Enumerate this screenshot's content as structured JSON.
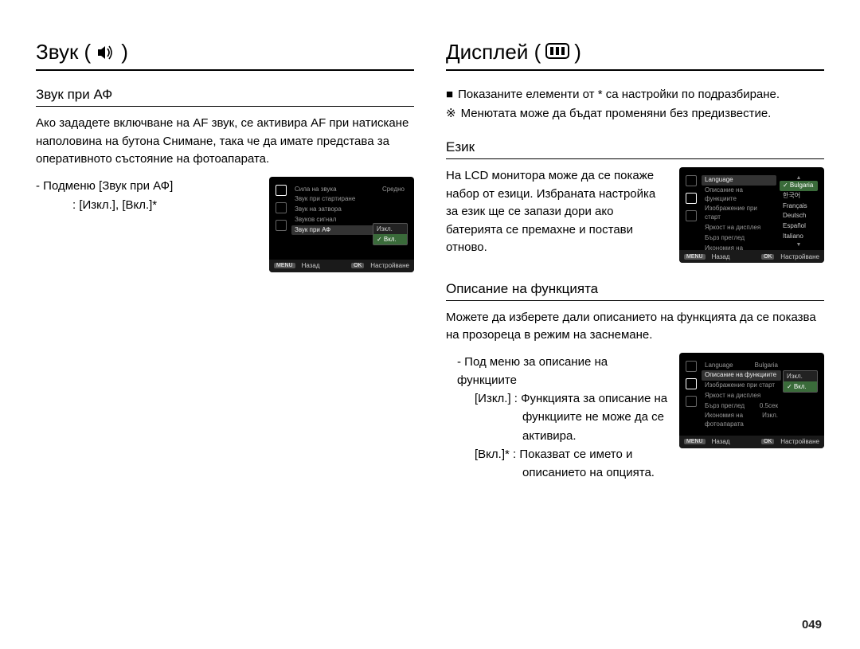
{
  "left": {
    "title": "Звук (",
    "title_close": ")",
    "icon": "sound-icon",
    "section1": {
      "heading": "Звук при АФ",
      "para": "Ако зададете включване на AF звук, се активира AF при натискане наполовина на бутона Снимане, така че да имате представа за оперативното състояние на фотоапарата.",
      "submenu_label": "- Подменю [Звук при АФ]",
      "submenu_values": ": [Изкл.], [Вкл.]*"
    },
    "lcd1": {
      "rows": [
        {
          "l": "Сила на звука",
          "r": "Средно"
        },
        {
          "l": "Звук при стартиране",
          "r": ""
        },
        {
          "l": "Звук на затвора",
          "r": ""
        },
        {
          "l": "Звуков сигнал",
          "r": ""
        },
        {
          "l": "Звук при АФ",
          "r": "",
          "sel": true
        }
      ],
      "opts": [
        {
          "t": "Изкл."
        },
        {
          "t": "Вкл.",
          "sel": true,
          "chk": true
        }
      ],
      "footer": {
        "back_btn": "MENU",
        "back": "Назад",
        "set_btn": "OK",
        "set": "Настройване"
      }
    }
  },
  "right": {
    "title": "Дисплей (",
    "title_close": ")",
    "icon": "display-icon",
    "notes": [
      {
        "b": "■",
        "t": "Показаните елементи от * са настройки по подразбиране."
      },
      {
        "b": "※",
        "t": "Менютата може да бъдат променяни без предизвестие."
      }
    ],
    "lang": {
      "heading": "Език",
      "para": "На LCD монитора може да се покаже набор от езици. Избраната настройка за език ще се запази дори ако батерията се премахне и постави отново."
    },
    "lcd2": {
      "rows": [
        {
          "l": "Language",
          "sel": true
        },
        {
          "l": "Описание на функциите"
        },
        {
          "l": "Изображение при старт"
        },
        {
          "l": "Яркост на дисплея"
        },
        {
          "l": "Бърз преглед"
        },
        {
          "l": "Икономия на фотоапарата"
        }
      ],
      "opts": [
        {
          "t": "Bulgaria",
          "sel": true,
          "chk": true
        },
        {
          "t": "한국어"
        },
        {
          "t": "Français"
        },
        {
          "t": "Deutsch"
        },
        {
          "t": "Español"
        },
        {
          "t": "Italiano"
        }
      ],
      "footer": {
        "back_btn": "MENU",
        "back": "Назад",
        "set_btn": "OK",
        "set": "Настройване"
      }
    },
    "funcdesc": {
      "heading": "Описание на функцията",
      "para": "Можете да изберете дали описанието на функцията да се показва на прозореца в режим на заснемане.",
      "sub_label": "- Под меню за описание на функциите",
      "opt1_label": "[Изкл.] :",
      "opt1_text1": "Функцията за описание на",
      "opt1_text2": "функциите не може да се",
      "opt1_text3": "активира.",
      "opt2_label": "[Вкл.]* :",
      "opt2_text1": "Показват се името и",
      "opt2_text2": "описанието на опцията."
    },
    "lcd3": {
      "rows": [
        {
          "l": "Language",
          "r": "Bulgaria"
        },
        {
          "l": "Описание на функциите",
          "sel": true
        },
        {
          "l": "Изображение при старт"
        },
        {
          "l": "Яркост на дисплея"
        },
        {
          "l": "Бърз преглед",
          "r": "0.5сек"
        },
        {
          "l": "Икономия на фотоапарата",
          "r": "Изкл."
        }
      ],
      "opts": [
        {
          "t": "Изкл."
        },
        {
          "t": "Вкл.",
          "sel": true,
          "chk": true
        }
      ],
      "footer": {
        "back_btn": "MENU",
        "back": "Назад",
        "set_btn": "OK",
        "set": "Настройване"
      }
    }
  },
  "page_number": "049"
}
